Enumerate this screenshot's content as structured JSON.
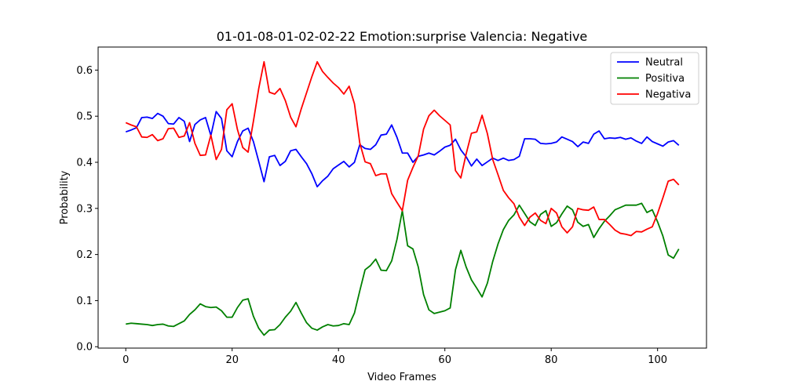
{
  "chart_data": {
    "type": "line",
    "title": "01-01-08-01-02-02-22 Emotion:surprise Valencia: Negative",
    "xlabel": "Video Frames",
    "ylabel": "Probability",
    "xlim": [
      -5.2,
      109.2
    ],
    "ylim": [
      -0.003,
      0.65
    ],
    "xticks": [
      0,
      20,
      40,
      60,
      80,
      100
    ],
    "yticks": [
      0.0,
      0.1,
      0.2,
      0.3,
      0.4,
      0.5,
      0.6
    ],
    "ytick_labels": [
      "0.0",
      "0.1",
      "0.2",
      "0.3",
      "0.4",
      "0.5",
      "0.6"
    ],
    "grid": false,
    "legend_position": "top-right",
    "x_start": 0,
    "series": [
      {
        "name": "Neutral",
        "color": "#0000ff",
        "values": [
          0.466,
          0.47,
          0.475,
          0.497,
          0.498,
          0.495,
          0.506,
          0.5,
          0.484,
          0.483,
          0.497,
          0.489,
          0.445,
          0.482,
          0.492,
          0.497,
          0.458,
          0.51,
          0.495,
          0.425,
          0.412,
          0.445,
          0.468,
          0.474,
          0.445,
          0.402,
          0.358,
          0.412,
          0.415,
          0.393,
          0.402,
          0.425,
          0.428,
          0.412,
          0.397,
          0.375,
          0.347,
          0.36,
          0.37,
          0.386,
          0.394,
          0.402,
          0.39,
          0.4,
          0.438,
          0.43,
          0.428,
          0.438,
          0.459,
          0.461,
          0.481,
          0.454,
          0.42,
          0.42,
          0.4,
          0.413,
          0.416,
          0.42,
          0.416,
          0.424,
          0.433,
          0.437,
          0.45,
          0.427,
          0.412,
          0.392,
          0.407,
          0.393,
          0.401,
          0.409,
          0.404,
          0.409,
          0.404,
          0.406,
          0.413,
          0.451,
          0.451,
          0.45,
          0.441,
          0.44,
          0.441,
          0.444,
          0.455,
          0.45,
          0.445,
          0.434,
          0.444,
          0.441,
          0.461,
          0.468,
          0.451,
          0.453,
          0.452,
          0.454,
          0.45,
          0.453,
          0.446,
          0.441,
          0.455,
          0.445,
          0.44,
          0.435,
          0.444,
          0.447,
          0.437
        ]
      },
      {
        "name": "Positiva",
        "color": "#008000",
        "values": [
          0.049,
          0.051,
          0.05,
          0.049,
          0.048,
          0.046,
          0.048,
          0.049,
          0.045,
          0.044,
          0.05,
          0.056,
          0.07,
          0.08,
          0.093,
          0.087,
          0.085,
          0.086,
          0.078,
          0.064,
          0.064,
          0.085,
          0.101,
          0.104,
          0.066,
          0.04,
          0.025,
          0.036,
          0.037,
          0.048,
          0.064,
          0.077,
          0.096,
          0.073,
          0.052,
          0.04,
          0.036,
          0.043,
          0.048,
          0.045,
          0.046,
          0.05,
          0.048,
          0.073,
          0.121,
          0.167,
          0.176,
          0.19,
          0.166,
          0.165,
          0.186,
          0.233,
          0.295,
          0.219,
          0.212,
          0.173,
          0.113,
          0.08,
          0.072,
          0.075,
          0.078,
          0.084,
          0.167,
          0.209,
          0.173,
          0.145,
          0.127,
          0.108,
          0.138,
          0.185,
          0.223,
          0.254,
          0.274,
          0.286,
          0.307,
          0.289,
          0.271,
          0.263,
          0.287,
          0.295,
          0.261,
          0.269,
          0.288,
          0.305,
          0.297,
          0.27,
          0.261,
          0.265,
          0.237,
          0.256,
          0.272,
          0.284,
          0.297,
          0.302,
          0.307,
          0.307,
          0.307,
          0.311,
          0.291,
          0.297,
          0.271,
          0.24,
          0.199,
          0.192,
          0.212
        ]
      },
      {
        "name": "Negativa",
        "color": "#ff0000",
        "values": [
          0.486,
          0.481,
          0.477,
          0.455,
          0.454,
          0.46,
          0.447,
          0.451,
          0.473,
          0.474,
          0.454,
          0.457,
          0.486,
          0.441,
          0.415,
          0.416,
          0.459,
          0.406,
          0.428,
          0.514,
          0.527,
          0.471,
          0.432,
          0.422,
          0.489,
          0.56,
          0.618,
          0.552,
          0.548,
          0.56,
          0.534,
          0.498,
          0.477,
          0.516,
          0.551,
          0.586,
          0.618,
          0.597,
          0.584,
          0.572,
          0.562,
          0.548,
          0.565,
          0.527,
          0.442,
          0.401,
          0.397,
          0.371,
          0.375,
          0.375,
          0.332,
          0.313,
          0.295,
          0.361,
          0.389,
          0.414,
          0.472,
          0.501,
          0.513,
          0.501,
          0.491,
          0.481,
          0.382,
          0.366,
          0.418,
          0.463,
          0.466,
          0.502,
          0.462,
          0.406,
          0.373,
          0.339,
          0.323,
          0.31,
          0.281,
          0.263,
          0.281,
          0.29,
          0.274,
          0.267,
          0.3,
          0.29,
          0.26,
          0.247,
          0.26,
          0.3,
          0.297,
          0.296,
          0.303,
          0.276,
          0.276,
          0.265,
          0.253,
          0.246,
          0.244,
          0.241,
          0.25,
          0.249,
          0.255,
          0.26,
          0.289,
          0.323,
          0.359,
          0.363,
          0.351
        ]
      }
    ]
  }
}
